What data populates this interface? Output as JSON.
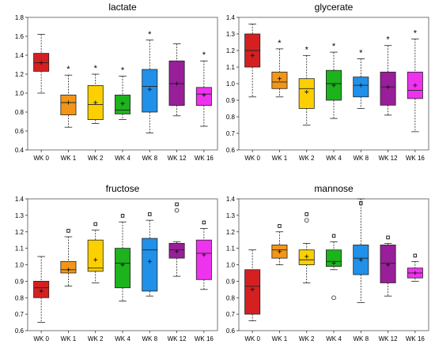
{
  "colors": {
    "WK 0": "#d42020",
    "WK 1": "#f29618",
    "WK 2": "#fcd000",
    "WK 4": "#1cb31c",
    "WK 8": "#2090e8",
    "WK 12": "#991e99",
    "WK 16": "#ee33ee"
  },
  "chart_data": [
    {
      "type": "boxplot",
      "title": "lactate",
      "categories": [
        "WK 0",
        "WK 1",
        "WK 2",
        "WK 4",
        "WK 8",
        "WK 12",
        "WK 16"
      ],
      "ylim": [
        0.4,
        1.8
      ],
      "yticks": [
        "0.4",
        "0.6",
        "0.8",
        "1.0",
        "1.2",
        "1.4",
        "1.6",
        "1.8"
      ],
      "boxes": [
        {
          "min": 1.0,
          "q1": 1.23,
          "median": 1.32,
          "q3": 1.42,
          "max": 1.62,
          "mean": 1.32,
          "mark": "",
          "outliers": []
        },
        {
          "min": 0.64,
          "q1": 0.77,
          "median": 0.9,
          "q3": 0.98,
          "max": 1.19,
          "mean": 0.9,
          "mark": "*",
          "outliers": []
        },
        {
          "min": 0.68,
          "q1": 0.72,
          "median": 0.88,
          "q3": 1.08,
          "max": 1.2,
          "mean": 0.9,
          "mark": "*",
          "outliers": []
        },
        {
          "min": 0.72,
          "q1": 0.78,
          "median": 0.82,
          "q3": 0.98,
          "max": 1.18,
          "mean": 0.89,
          "mark": "*",
          "outliers": []
        },
        {
          "min": 0.58,
          "q1": 0.8,
          "median": 1.07,
          "q3": 1.25,
          "max": 1.56,
          "mean": 1.04,
          "mark": "*",
          "outliers": []
        },
        {
          "min": 0.76,
          "q1": 0.87,
          "median": 1.1,
          "q3": 1.34,
          "max": 1.52,
          "mean": 1.1,
          "mark": "",
          "outliers": []
        },
        {
          "min": 0.65,
          "q1": 0.87,
          "median": 0.99,
          "q3": 1.06,
          "max": 1.34,
          "mean": 0.98,
          "mark": "*",
          "outliers": []
        }
      ]
    },
    {
      "type": "boxplot",
      "title": "glycerate",
      "categories": [
        "WK 0",
        "WK 1",
        "WK 2",
        "WK 4",
        "WK 8",
        "WK 12",
        "WK 16"
      ],
      "ylim": [
        0.6,
        1.4
      ],
      "yticks": [
        "0.6",
        "0.7",
        "0.8",
        "0.9",
        "1.0",
        "1.1",
        "1.2",
        "1.3",
        "1.4"
      ],
      "boxes": [
        {
          "min": 0.92,
          "q1": 1.1,
          "median": 1.2,
          "q3": 1.3,
          "max": 1.36,
          "mean": 1.17,
          "mark": "",
          "outliers": []
        },
        {
          "min": 0.92,
          "q1": 0.97,
          "median": 1.01,
          "q3": 1.07,
          "max": 1.21,
          "mean": 1.03,
          "mark": "*",
          "outliers": []
        },
        {
          "min": 0.75,
          "q1": 0.85,
          "median": 0.97,
          "q3": 1.03,
          "max": 1.17,
          "mean": 0.95,
          "mark": "*",
          "outliers": []
        },
        {
          "min": 0.79,
          "q1": 0.9,
          "median": 1.0,
          "q3": 1.08,
          "max": 1.19,
          "mean": 0.99,
          "mark": "*",
          "outliers": []
        },
        {
          "min": 0.85,
          "q1": 0.92,
          "median": 0.99,
          "q3": 1.04,
          "max": 1.15,
          "mean": 0.99,
          "mark": "*",
          "outliers": []
        },
        {
          "min": 0.81,
          "q1": 0.87,
          "median": 0.98,
          "q3": 1.07,
          "max": 1.23,
          "mean": 0.98,
          "mark": "*",
          "outliers": []
        },
        {
          "min": 0.71,
          "q1": 0.91,
          "median": 0.96,
          "q3": 1.07,
          "max": 1.27,
          "mean": 0.99,
          "mark": "*",
          "outliers": []
        }
      ]
    },
    {
      "type": "boxplot",
      "title": "fructose",
      "categories": [
        "WK 0",
        "WK 1",
        "WK 2",
        "WK 4",
        "WK 8",
        "WK 12",
        "WK 16"
      ],
      "ylim": [
        0.6,
        1.4
      ],
      "yticks": [
        "0.6",
        "0.7",
        "0.8",
        "0.9",
        "1.0",
        "1.1",
        "1.2",
        "1.3",
        "1.4"
      ],
      "boxes": [
        {
          "min": 0.65,
          "q1": 0.8,
          "median": 0.86,
          "q3": 0.9,
          "max": 1.05,
          "mean": 0.84,
          "mark": "",
          "outliers": []
        },
        {
          "min": 0.87,
          "q1": 0.95,
          "median": 0.97,
          "q3": 1.02,
          "max": 1.17,
          "mean": 0.97,
          "mark": "¤",
          "outliers": []
        },
        {
          "min": 0.89,
          "q1": 0.96,
          "median": 0.98,
          "q3": 1.15,
          "max": 1.21,
          "mean": 1.03,
          "mark": "¤",
          "outliers": []
        },
        {
          "min": 0.78,
          "q1": 0.86,
          "median": 1.01,
          "q3": 1.1,
          "max": 1.26,
          "mean": 1.0,
          "mark": "¤",
          "outliers": []
        },
        {
          "min": 0.81,
          "q1": 0.84,
          "median": 1.09,
          "q3": 1.16,
          "max": 1.27,
          "mean": 1.02,
          "mark": "¤",
          "outliers": []
        },
        {
          "min": 0.93,
          "q1": 1.04,
          "median": 1.09,
          "q3": 1.13,
          "max": 1.14,
          "mean": 1.08,
          "mark": "¤",
          "outliers": [
            1.33
          ]
        },
        {
          "min": 0.85,
          "q1": 0.91,
          "median": 1.07,
          "q3": 1.15,
          "max": 1.22,
          "mean": 1.06,
          "mark": "¤",
          "outliers": []
        }
      ]
    },
    {
      "type": "boxplot",
      "title": "mannose",
      "categories": [
        "WK 0",
        "WK 1",
        "WK 2",
        "WK 4",
        "WK 8",
        "WK 12",
        "WK 16"
      ],
      "ylim": [
        0.6,
        1.4
      ],
      "yticks": [
        "0.6",
        "0.7",
        "0.8",
        "0.9",
        "1.0",
        "1.1",
        "1.2",
        "1.3",
        "1.4"
      ],
      "boxes": [
        {
          "min": 0.66,
          "q1": 0.7,
          "median": 0.87,
          "q3": 0.97,
          "max": 1.09,
          "mean": 0.85,
          "mark": "",
          "outliers": []
        },
        {
          "min": 1.0,
          "q1": 1.04,
          "median": 1.09,
          "q3": 1.12,
          "max": 1.2,
          "mean": 1.08,
          "mark": "¤",
          "outliers": []
        },
        {
          "min": 0.89,
          "q1": 1.0,
          "median": 1.03,
          "q3": 1.09,
          "max": 1.13,
          "mean": 1.05,
          "mark": "¤",
          "outliers": [
            1.27
          ]
        },
        {
          "min": 0.97,
          "q1": 0.99,
          "median": 1.02,
          "q3": 1.09,
          "max": 1.14,
          "mean": 1.01,
          "mark": "¤",
          "outliers": [
            0.8
          ]
        },
        {
          "min": 0.77,
          "q1": 0.94,
          "median": 1.04,
          "q3": 1.12,
          "max": 1.4,
          "mean": 1.03,
          "mark": "¤",
          "outliers": []
        },
        {
          "min": 0.81,
          "q1": 0.89,
          "median": 1.01,
          "q3": 1.12,
          "max": 1.13,
          "mean": 1.0,
          "mark": "¤",
          "outliers": []
        },
        {
          "min": 0.9,
          "q1": 0.92,
          "median": 0.95,
          "q3": 0.98,
          "max": 1.02,
          "mean": 0.95,
          "mark": "¤",
          "outliers": []
        }
      ]
    }
  ]
}
